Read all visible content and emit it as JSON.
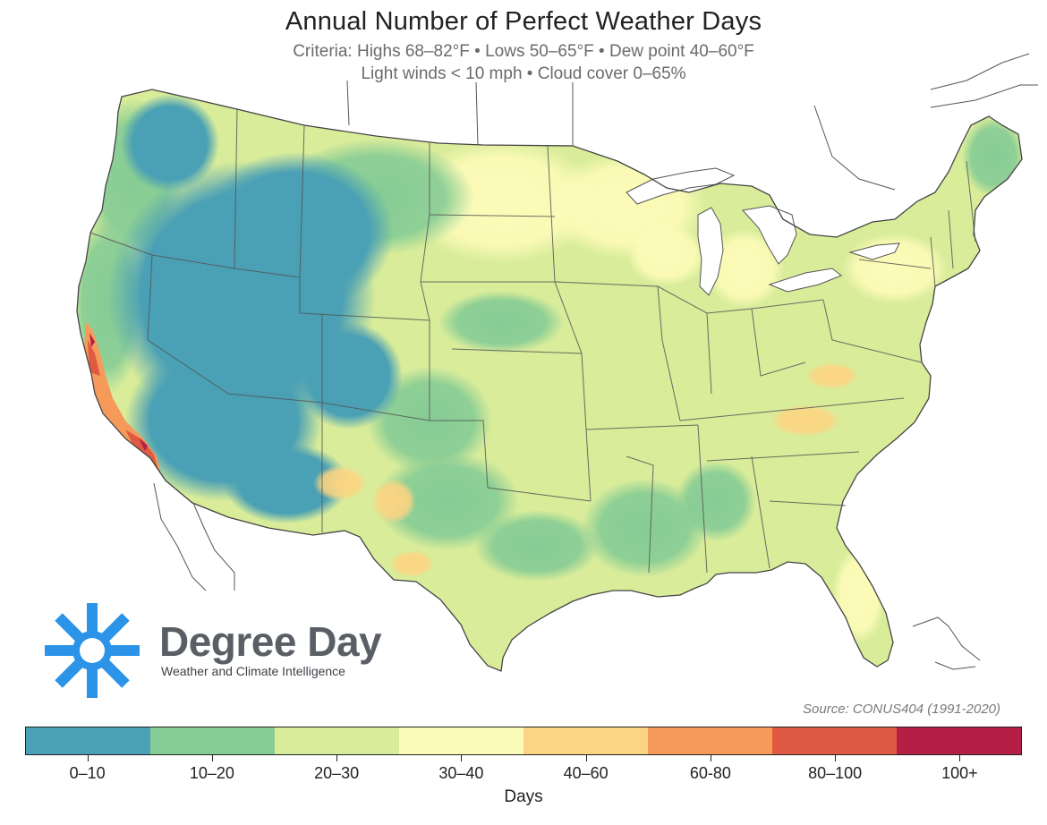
{
  "header": {
    "title": "Annual Number of Perfect Weather Days",
    "subtitle_line1": "Criteria: Highs 68–82°F • Lows 50–65°F • Dew point 40–60°F",
    "subtitle_line2": "Light winds < 10 mph • Cloud cover 0–65%"
  },
  "brand": {
    "name": "Degree Day",
    "tagline": "Weather and Climate Intelligence",
    "color": "#2b93e8",
    "icon": "sun-icon"
  },
  "source": "Source: CONUS404 (1991-2020)",
  "legend": {
    "title": "Days",
    "bins": [
      {
        "label": "0–10",
        "color": "#4aa0b5"
      },
      {
        "label": "10–20",
        "color": "#86cc95"
      },
      {
        "label": "20–30",
        "color": "#d8ec9a"
      },
      {
        "label": "30–40",
        "color": "#fdfbb8"
      },
      {
        "label": "40–60",
        "color": "#fdd582"
      },
      {
        "label": "60-80",
        "color": "#f69a5a"
      },
      {
        "label": "80–100",
        "color": "#e05a43"
      },
      {
        "label": "100+",
        "color": "#b41f46"
      }
    ]
  },
  "map": {
    "region": "Contiguous United States",
    "boundary_color": "#444444",
    "water_color": "#ffffff"
  }
}
